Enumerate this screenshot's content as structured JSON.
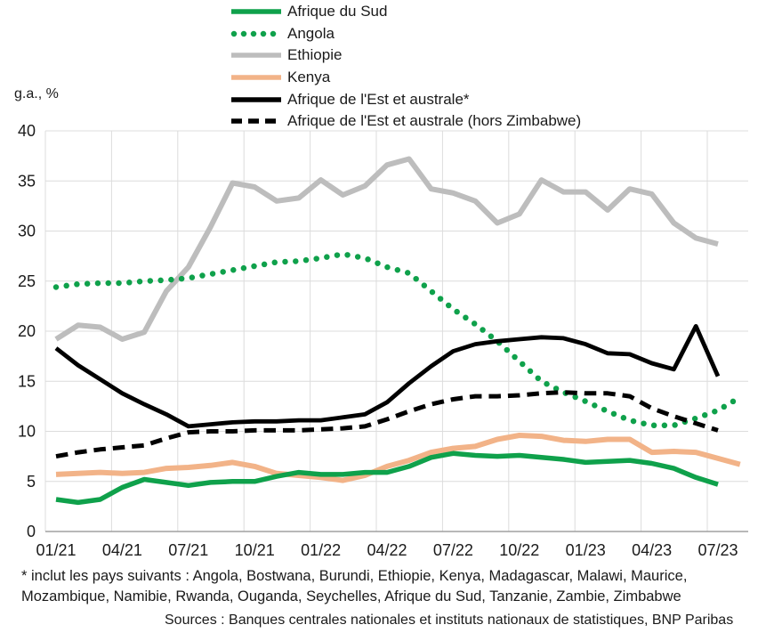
{
  "chart_data": {
    "type": "line",
    "ylabel": "g.a., %",
    "ylim": [
      0,
      40
    ],
    "y_ticks": [
      0,
      5,
      10,
      15,
      20,
      25,
      30,
      35,
      40
    ],
    "x_tick_labels": [
      "01/21",
      "04/21",
      "07/21",
      "10/21",
      "01/22",
      "04/22",
      "07/22",
      "10/22",
      "01/23",
      "04/23",
      "07/23"
    ],
    "grid": true,
    "grid_color": "#dcdcdc",
    "axis_color": "#a0a0a0",
    "text_color": "#1a1a1a",
    "legend_position": "top",
    "series": [
      {
        "name": "Afrique du Sud",
        "color": "#0fa14b",
        "style": "solid",
        "values": [
          3.2,
          2.9,
          3.2,
          4.4,
          5.2,
          4.9,
          4.6,
          4.9,
          5.0,
          5.0,
          5.5,
          5.9,
          5.7,
          5.7,
          5.9,
          5.9,
          6.5,
          7.4,
          7.8,
          7.6,
          7.5,
          7.6,
          7.4,
          7.2,
          6.9,
          7.0,
          7.1,
          6.8,
          6.3,
          5.4,
          4.7
        ]
      },
      {
        "name": "Angola",
        "color": "#0fa14b",
        "style": "dotted",
        "values": [
          24.4,
          24.7,
          24.8,
          24.8,
          25.0,
          25.1,
          25.3,
          25.7,
          26.1,
          26.5,
          26.9,
          27.0,
          27.3,
          27.7,
          27.3,
          26.4,
          25.8,
          24.0,
          22.2,
          20.7,
          19.0,
          17.0,
          15.0,
          13.9,
          13.0,
          12.0,
          11.1,
          10.6,
          10.6,
          11.3,
          12.1,
          13.4
        ]
      },
      {
        "name": "Ethiopie",
        "color": "#bdbdbd",
        "style": "solid",
        "values": [
          19.2,
          20.6,
          20.4,
          19.2,
          19.9,
          24.0,
          26.4,
          30.4,
          34.8,
          34.4,
          33.0,
          33.3,
          35.1,
          33.6,
          34.5,
          36.6,
          37.2,
          34.2,
          33.8,
          33.0,
          30.8,
          31.7,
          35.1,
          33.9,
          33.9,
          32.1,
          34.2,
          33.7,
          30.8,
          29.3,
          28.7
        ]
      },
      {
        "name": "Kenya",
        "color": "#f2b388",
        "style": "solid",
        "values": [
          5.7,
          5.8,
          5.9,
          5.8,
          5.9,
          6.3,
          6.4,
          6.6,
          6.9,
          6.5,
          5.8,
          5.6,
          5.4,
          5.1,
          5.6,
          6.5,
          7.1,
          7.9,
          8.3,
          8.5,
          9.2,
          9.6,
          9.5,
          9.1,
          9.0,
          9.2,
          9.2,
          7.9,
          8.0,
          7.9,
          7.3,
          6.7
        ]
      },
      {
        "name": "Afrique de l'Est et australe*",
        "color": "#000000",
        "style": "solid",
        "values": [
          18.3,
          16.6,
          15.2,
          13.8,
          12.7,
          11.7,
          10.5,
          10.7,
          10.9,
          11.0,
          11.0,
          11.1,
          11.1,
          11.4,
          11.7,
          12.9,
          14.8,
          16.5,
          18.0,
          18.7,
          19.0,
          19.2,
          19.4,
          19.3,
          18.7,
          17.8,
          17.7,
          16.8,
          16.2,
          20.5,
          15.5
        ]
      },
      {
        "name": "Afrique de l'Est et australe (hors Zimbabwe)",
        "color": "#000000",
        "style": "dashed",
        "values": [
          7.5,
          7.9,
          8.2,
          8.4,
          8.6,
          9.3,
          9.9,
          10.0,
          10.0,
          10.1,
          10.1,
          10.1,
          10.2,
          10.3,
          10.5,
          11.2,
          12.0,
          12.7,
          13.2,
          13.5,
          13.5,
          13.6,
          13.8,
          13.9,
          13.8,
          13.8,
          13.5,
          12.3,
          11.5,
          10.8,
          10.1
        ]
      }
    ]
  },
  "footnote": {
    "line1": "* inclut les pays suivants : Angola, Bostwana, Burundi, Ethiopie, Kenya, Madagascar, Malawi, Maurice,",
    "line2": "Mozambique, Namibie, Rwanda, Ouganda, Seychelles, Afrique du Sud, Tanzanie, Zambie, Zimbabwe"
  },
  "sources": "Sources : Banques centrales nationales et instituts nationaux de statistiques, BNP Paribas"
}
